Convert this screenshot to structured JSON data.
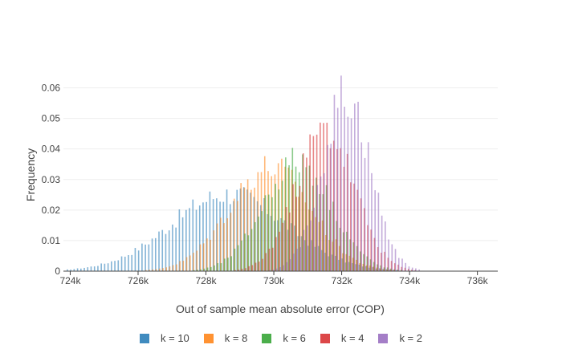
{
  "chart_data": {
    "type": "bar",
    "xlabel": "Out of sample mean absolute error (COP)",
    "ylabel": "Frequency",
    "xlim": [
      723800,
      736600
    ],
    "ylim": [
      0,
      0.0625
    ],
    "xticks": [
      724000,
      726000,
      728000,
      730000,
      732000,
      734000,
      736000
    ],
    "xtick_labels": [
      "724k",
      "726k",
      "728k",
      "730k",
      "732k",
      "734k",
      "736k"
    ],
    "yticks": [
      0,
      0.01,
      0.02,
      0.03,
      0.04,
      0.05,
      0.06
    ],
    "ytick_labels": [
      "0",
      "0.01",
      "0.02",
      "0.03",
      "0.04",
      "0.05",
      "0.06"
    ],
    "grid": true,
    "legend_position": "bottom",
    "bin_width": 100,
    "series": [
      {
        "name": "k = 10",
        "color": "#1f77b4",
        "mean": 728700,
        "sd": 1700,
        "peak": 0.026
      },
      {
        "name": "k = 8",
        "color": "#ff7f0e",
        "mean": 729900,
        "sd": 1200,
        "peak": 0.035
      },
      {
        "name": "k = 6",
        "color": "#2ca02c",
        "mean": 730700,
        "sd": 1000,
        "peak": 0.037
      },
      {
        "name": "k = 4",
        "color": "#d62728",
        "mean": 731500,
        "sd": 850,
        "peak": 0.048
      },
      {
        "name": "k = 2",
        "color": "#9467bd",
        "mean": 732100,
        "sd": 700,
        "peak": 0.06
      }
    ]
  }
}
